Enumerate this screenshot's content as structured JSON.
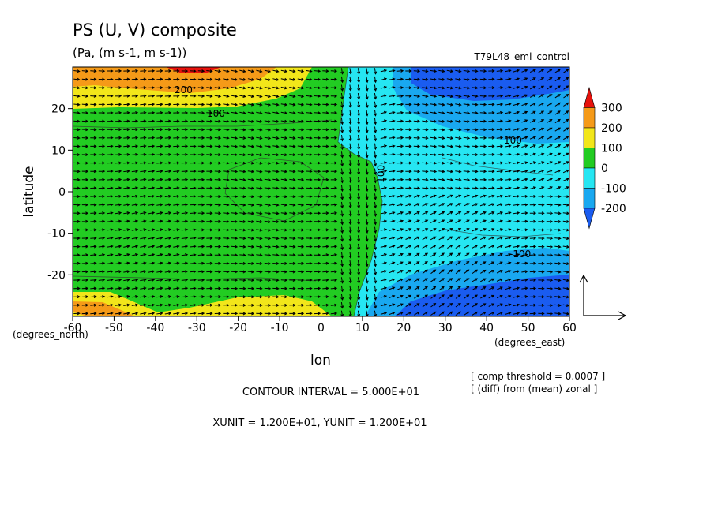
{
  "chart_data": {
    "type": "heatmap",
    "title": "PS (U, V) composite",
    "subtitle": "(Pa, (m s-1, m s-1))",
    "run_label": "T79L48_eml_control",
    "xlabel": "lon",
    "ylabel": "latitude",
    "x_unit_label": "(degrees_east)",
    "y_unit_label": "(degrees_north)",
    "xlim": [
      -60,
      60
    ],
    "ylim": [
      -30,
      30
    ],
    "x_ticks": [
      "-60",
      "-50",
      "-40",
      "-30",
      "-20",
      "-10",
      "0",
      "10",
      "20",
      "30",
      "40",
      "50",
      "60"
    ],
    "y_ticks": [
      "20",
      "10",
      "0",
      "-10",
      "-20"
    ],
    "x_tick_values": [
      -60,
      -50,
      -40,
      -30,
      -20,
      -10,
      0,
      10,
      20,
      30,
      40,
      50,
      60
    ],
    "y_tick_values": [
      20,
      10,
      0,
      -10,
      -20
    ],
    "colorbar": {
      "labels": [
        "300",
        "200",
        "100",
        "0",
        "-100",
        "-200"
      ],
      "levels": [
        300,
        200,
        100,
        0,
        -100,
        -200
      ],
      "colors": [
        "#e8120c",
        "#f59a18",
        "#f2e61a",
        "#22cc22",
        "#26e6f2",
        "#19a8f0",
        "#1a5cf0"
      ]
    },
    "contour_labels": [
      {
        "text": "200",
        "lon": -33,
        "lat": 24
      },
      {
        "text": "100",
        "lon": -26,
        "lat": 18
      },
      {
        "text": "100",
        "lon": 47,
        "lat": 12
      },
      {
        "text": "-100",
        "lon": 13,
        "lat": 2
      },
      {
        "text": "-100",
        "lon": 47,
        "lat": -15
      }
    ],
    "contour_interval_text": "CONTOUR INTERVAL = 5.000E+01",
    "vector_unit_text": "XUNIT = 1.200E+01, YUNIT = 1.200E+01",
    "notes": [
      "[ comp threshold = 0.0007 ]",
      "[ (diff) from (mean) zonal ]"
    ],
    "grid": false
  }
}
